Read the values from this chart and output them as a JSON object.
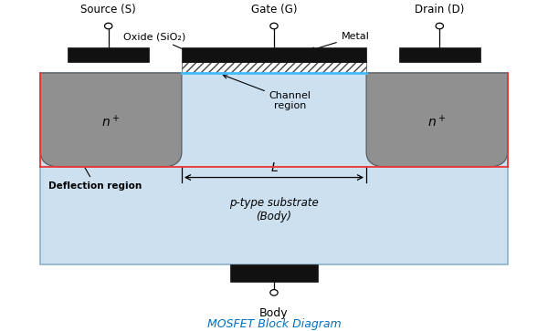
{
  "title": "MOSFET Block Diagram",
  "title_color": "#0070C0",
  "title_fontsize": 9,
  "bg_color": "#ffffff",
  "substrate_color": "#cce0f0",
  "substrate_border": "#8ab0cc",
  "n_region_color": "#909090",
  "gate_metal_color": "#111111",
  "contact_color": "#111111",
  "channel_line_color": "#44bbff",
  "depletion_border_color": "#ee3333",
  "labels": {
    "source": "Source (S)",
    "gate": "Gate (G)",
    "drain": "Drain (D)",
    "oxide": "Oxide (SiO₂)",
    "metal": "Metal",
    "channel": "Channel\nregion",
    "L_label": "L",
    "deflection": "Deflection region",
    "substrate": "p-type substrate\n(Body)",
    "body": "Body"
  },
  "figsize": [
    6.0,
    3.63
  ],
  "dpi": 100
}
